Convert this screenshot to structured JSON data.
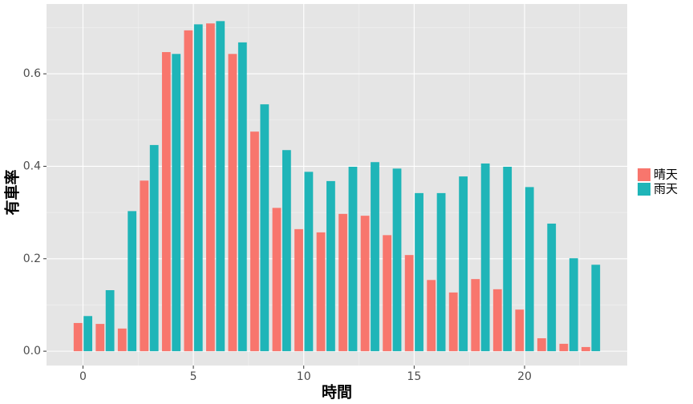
{
  "chart_data": {
    "type": "bar",
    "x_label": "時間",
    "y_label": "有車率",
    "x": [
      0,
      1,
      2,
      3,
      4,
      5,
      6,
      7,
      8,
      9,
      10,
      11,
      12,
      13,
      14,
      15,
      16,
      17,
      18,
      19,
      20,
      21,
      22,
      23
    ],
    "series": [
      {
        "name": "晴天",
        "color": "#f8766d",
        "values": [
          0.061,
          0.059,
          0.049,
          0.369,
          0.647,
          0.694,
          0.709,
          0.643,
          0.475,
          0.31,
          0.264,
          0.257,
          0.297,
          0.293,
          0.251,
          0.208,
          0.154,
          0.127,
          0.156,
          0.134,
          0.09,
          0.028,
          0.016,
          0.009
        ]
      },
      {
        "name": "雨天",
        "color": "#1fb5b8",
        "values": [
          0.076,
          0.132,
          0.303,
          0.446,
          0.643,
          0.707,
          0.714,
          0.668,
          0.534,
          0.435,
          0.388,
          0.368,
          0.399,
          0.409,
          0.395,
          0.342,
          0.342,
          0.378,
          0.406,
          0.399,
          0.355,
          0.276,
          0.201,
          0.187
        ]
      }
    ],
    "xlim": [
      -1.65,
      24.65
    ],
    "xticks": [
      0,
      5,
      10,
      15,
      20
    ],
    "ylim": [
      -0.031,
      0.751
    ],
    "yticks": [
      {
        "value": 0,
        "label": "0.0"
      },
      0.2,
      0.4,
      0.6
    ],
    "grid": true,
    "legend": "right"
  }
}
